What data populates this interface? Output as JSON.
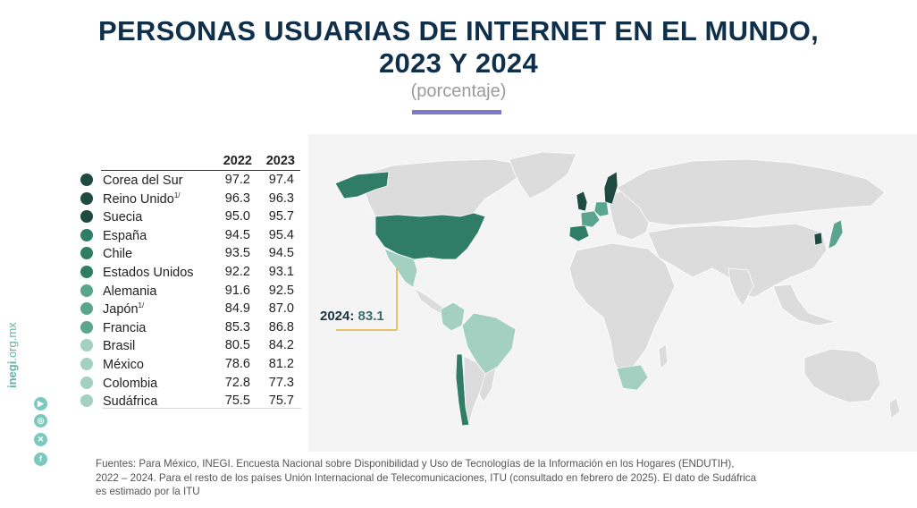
{
  "header": {
    "title_line1": "PERSONAS USUARIAS DE INTERNET EN EL MUNDO,",
    "title_line2": "2023 Y 2024",
    "subtitle": "(porcentaje)"
  },
  "table": {
    "col_2022": "2022",
    "col_2023": "2023",
    "rows": [
      {
        "name": "Corea del Sur",
        "sup": "",
        "v2022": "97.2",
        "v2023": "97.4",
        "color": "#1f4a3f"
      },
      {
        "name": "Reino Unido",
        "sup": "1/",
        "v2022": "96.3",
        "v2023": "96.3",
        "color": "#1f4a3f"
      },
      {
        "name": "Suecia",
        "sup": "",
        "v2022": "95.0",
        "v2023": "95.7",
        "color": "#1f4a3f"
      },
      {
        "name": "España",
        "sup": "",
        "v2022": "94.5",
        "v2023": "95.4",
        "color": "#2e7d64"
      },
      {
        "name": "Chile",
        "sup": "",
        "v2022": "93.5",
        "v2023": "94.5",
        "color": "#2e7d64"
      },
      {
        "name": "Estados Unidos",
        "sup": "",
        "v2022": "92.2",
        "v2023": "93.1",
        "color": "#2e7d64"
      },
      {
        "name": "Alemania",
        "sup": "",
        "v2022": "91.6",
        "v2023": "92.5",
        "color": "#5aa58d"
      },
      {
        "name": "Japón",
        "sup": "1/",
        "v2022": "84.9",
        "v2023": "87.0",
        "color": "#5aa58d"
      },
      {
        "name": "Francia",
        "sup": "",
        "v2022": "85.3",
        "v2023": "86.8",
        "color": "#5aa58d"
      },
      {
        "name": "Brasil",
        "sup": "",
        "v2022": "80.5",
        "v2023": "84.2",
        "color": "#a3d0c0"
      },
      {
        "name": "México",
        "sup": "",
        "v2022": "78.6",
        "v2023": "81.2",
        "color": "#a3d0c0"
      },
      {
        "name": "Colombia",
        "sup": "",
        "v2022": "72.8",
        "v2023": "77.3",
        "color": "#a3d0c0"
      },
      {
        "name": "Sudáfrica",
        "sup": "",
        "v2022": "75.5",
        "v2023": "75.7",
        "color": "#a3d0c0"
      }
    ]
  },
  "callout": {
    "label": "2024:",
    "value": "83.1"
  },
  "sidebar": {
    "site_bold": "inegi",
    "site_rest": ".org.mx",
    "icons": [
      "youtube-icon",
      "instagram-icon",
      "x-icon",
      "facebook-icon"
    ]
  },
  "footer": {
    "text": "Fuentes:  Para México, INEGI. Encuesta Nacional sobre Disponibilidad y Uso de Tecnologías de la Información en los Hogares (ENDUTIH), 2022 – 2024. Para el resto de los países Unión Internacional de Telecomunicaciones, ITU (consultado en febrero de 2025). El dato de Sudáfrica es estimado por la ITU"
  },
  "colors": {
    "title": "#0f2f4a",
    "accent": "#7e78c9",
    "land": "#dcdcdc",
    "dark_green": "#1f4a3f",
    "mid_green": "#2e7d64",
    "light_mid_green": "#5aa58d",
    "pale_green": "#a3d0c0",
    "callout_line": "#e5c16a"
  }
}
